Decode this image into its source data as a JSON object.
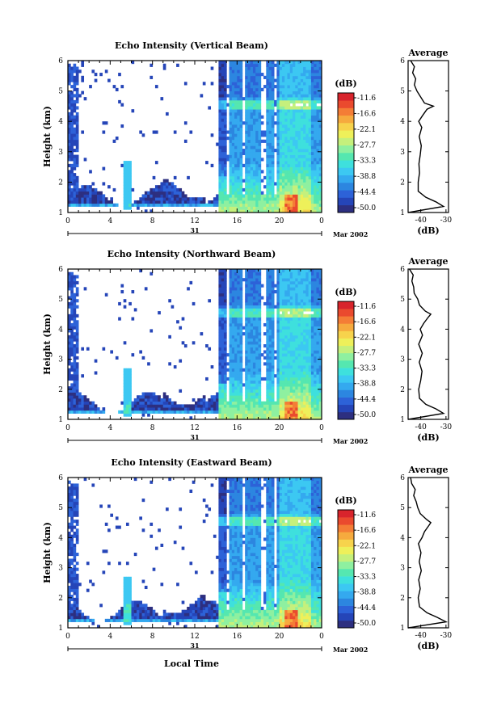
{
  "colors": {
    "scale": [
      "#2d2f80",
      "#2545b8",
      "#2d62d8",
      "#2c86e0",
      "#34a9ef",
      "#3cc8f2",
      "#3ee0dd",
      "#55e7b0",
      "#8ef0a0",
      "#c5f07c",
      "#eef05a",
      "#f7d34c",
      "#f6aa3e",
      "#f47d36",
      "#ea4a2e",
      "#d8242c"
    ],
    "line": "#000000"
  },
  "chart_data": [
    {
      "type": "heatmap",
      "title": "Echo Intensity (Vertical Beam)",
      "ylabel": "Height (km)",
      "ylim": [
        1,
        6
      ],
      "y_ticks": [
        "1",
        "2",
        "3",
        "4",
        "5",
        "6"
      ],
      "x_ticks": [
        "0",
        "4",
        "8",
        "12",
        "16",
        "20",
        "0"
      ],
      "date_label": "31",
      "month_label": "Mar 2002",
      "colorbar_unit": "(dB)",
      "colorbar_ticks": [
        "-11.6",
        "-16.6",
        "-22.1",
        "-27.7",
        "-33.3",
        "-38.8",
        "-44.4",
        "-50.0"
      ],
      "profile": {
        "title": "Average",
        "xlabel": "(dB)",
        "x_ticks": [
          "-40",
          "-30"
        ],
        "xlim": [
          -45,
          -29
        ],
        "height": [
          1.0,
          1.2,
          1.35,
          1.5,
          1.7,
          2.0,
          2.3,
          2.6,
          2.9,
          3.2,
          3.5,
          3.8,
          4.0,
          4.2,
          4.4,
          4.5,
          4.6,
          4.8,
          5.0,
          5.2,
          5.4,
          5.6,
          5.8,
          6.0
        ],
        "db": [
          -45,
          -31,
          -34,
          -38,
          -41,
          -41,
          -40.5,
          -40.7,
          -40.2,
          -39.8,
          -40.6,
          -39.6,
          -40.8,
          -39.2,
          -37.5,
          -35,
          -38.5,
          -40,
          -41.5,
          -42.5,
          -42,
          -43.2,
          -42.5,
          -44
        ]
      }
    },
    {
      "type": "heatmap",
      "title": "Echo Intensity (Northward Beam)",
      "ylabel": "Height (km)",
      "ylim": [
        1,
        6
      ],
      "y_ticks": [
        "1",
        "2",
        "3",
        "4",
        "5",
        "6"
      ],
      "x_ticks": [
        "0",
        "4",
        "8",
        "12",
        "16",
        "20",
        "0"
      ],
      "date_label": "31",
      "month_label": "Mar 2002",
      "colorbar_unit": "(dB)",
      "colorbar_ticks": [
        "-11.6",
        "-16.6",
        "-22.1",
        "-27.7",
        "-33.3",
        "-38.8",
        "-44.4",
        "-50.0"
      ],
      "profile": {
        "title": "Average",
        "xlabel": "(dB)",
        "x_ticks": [
          "-40",
          "-30"
        ],
        "xlim": [
          -45,
          -29
        ],
        "height": [
          1.0,
          1.2,
          1.35,
          1.5,
          1.7,
          2.0,
          2.3,
          2.6,
          2.9,
          3.2,
          3.5,
          3.8,
          4.0,
          4.2,
          4.4,
          4.5,
          4.6,
          4.8,
          5.0,
          5.2,
          5.4,
          5.6,
          5.8,
          6.0
        ],
        "db": [
          -45,
          -31,
          -34,
          -38,
          -40.5,
          -40.8,
          -40,
          -39.5,
          -40.6,
          -39.4,
          -40.8,
          -39.3,
          -40.2,
          -38.8,
          -37,
          -36,
          -38.2,
          -40.5,
          -41.2,
          -42.6,
          -42.8,
          -43.5,
          -43,
          -44.5
        ]
      }
    },
    {
      "type": "heatmap",
      "title": "Echo Intensity (Eastward Beam)",
      "ylabel": "Height (km)",
      "xlabel": "Local Time",
      "ylim": [
        1,
        6
      ],
      "y_ticks": [
        "1",
        "2",
        "3",
        "4",
        "5",
        "6"
      ],
      "x_ticks": [
        "0",
        "4",
        "8",
        "12",
        "16",
        "20",
        "0"
      ],
      "date_label": "31",
      "month_label": "Mar 2002",
      "colorbar_unit": "(dB)",
      "colorbar_ticks": [
        "-11.6",
        "-16.6",
        "-22.1",
        "-27.7",
        "-33.3",
        "-38.8",
        "-44.4",
        "-50.0"
      ],
      "profile": {
        "title": "Average",
        "xlabel": "(dB)",
        "x_ticks": [
          "-40",
          "-30"
        ],
        "xlim": [
          -45,
          -29
        ],
        "height": [
          1.0,
          1.2,
          1.35,
          1.5,
          1.7,
          2.0,
          2.3,
          2.6,
          2.9,
          3.2,
          3.5,
          3.8,
          4.0,
          4.2,
          4.4,
          4.5,
          4.6,
          4.8,
          5.0,
          5.2,
          5.4,
          5.6,
          5.8,
          6.0
        ],
        "db": [
          -45,
          -30,
          -33.5,
          -37.5,
          -40.5,
          -41,
          -40.2,
          -40.8,
          -39.8,
          -40.6,
          -39.9,
          -40.9,
          -39.5,
          -38.5,
          -36.8,
          -36,
          -37.6,
          -40.2,
          -41.2,
          -41.8,
          -42.8,
          -42.2,
          -43.6,
          -44
        ]
      }
    }
  ]
}
